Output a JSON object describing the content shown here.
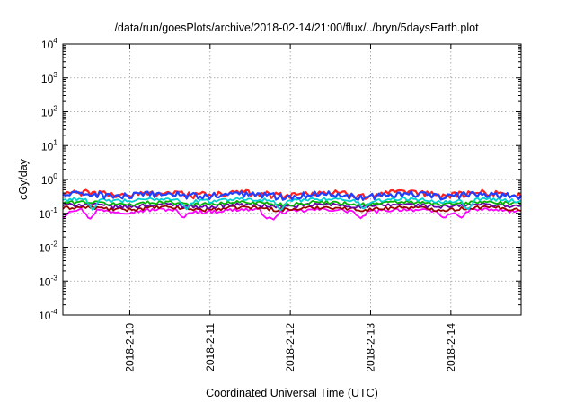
{
  "chart_data": {
    "type": "line",
    "title": "/data/run/goesPlots/archive/2018-02-14/21:00/flux/../bryn/5daysEarth.plot",
    "xlabel": "Coordinated Universal Time (UTC)",
    "ylabel": "cGy/day",
    "yscale": "log",
    "ylim": [
      0.0001,
      10000
    ],
    "y_tick_exponents": [
      "-4",
      "-3",
      "-2",
      "-1",
      "0",
      "1",
      "2",
      "3",
      "4"
    ],
    "y_tick_base": "10",
    "xlim": [
      "2018-02-09T04:00",
      "2018-02-14T21:00"
    ],
    "x_ticks": [
      {
        "date": "2018-02-10T00:00",
        "label": "2018-2-10"
      },
      {
        "date": "2018-02-11T00:00",
        "label": "2018-2-11"
      },
      {
        "date": "2018-02-12T00:00",
        "label": "2018-2-12"
      },
      {
        "date": "2018-02-13T00:00",
        "label": "2018-2-13"
      },
      {
        "date": "2018-02-14T00:00",
        "label": "2018-2-14"
      }
    ],
    "grid": true,
    "series": [
      {
        "color": "#ff00ff",
        "level": 0.12,
        "dips": [
          {
            "date": "2018-02-09T04:00",
            "value": 0.07
          },
          {
            "date": "2018-02-09T12:00",
            "value": 0.065
          },
          {
            "date": "2018-02-10T16:00",
            "value": 0.07
          },
          {
            "date": "2018-02-11T17:00",
            "value": 0.07
          },
          {
            "date": "2018-02-11T19:00",
            "value": 0.065
          },
          {
            "date": "2018-02-12T21:00",
            "value": 0.07
          },
          {
            "date": "2018-02-13T22:00",
            "value": 0.07
          },
          {
            "date": "2018-02-14T03:00",
            "value": 0.07
          }
        ]
      },
      {
        "color": "#9a0000",
        "level": 0.14,
        "dips": []
      },
      {
        "color": "#6a00aa",
        "level": 0.17,
        "dips": []
      },
      {
        "color": "#00b400",
        "level": 0.2,
        "dips": []
      },
      {
        "color": "#00d0d0",
        "level": 0.25,
        "dips": [
          {
            "date": "2018-02-09T13:00",
            "value": 0.12
          },
          {
            "date": "2018-02-10T17:00",
            "value": 0.13
          },
          {
            "date": "2018-02-11T21:00",
            "value": 0.12
          },
          {
            "date": "2018-02-12T22:00",
            "value": 0.13
          },
          {
            "date": "2018-02-14T05:00",
            "value": 0.12
          }
        ]
      },
      {
        "color": "#ff2020",
        "level": 0.38,
        "dips": []
      },
      {
        "color": "#2040ff",
        "level": 0.35,
        "dips": []
      }
    ]
  }
}
